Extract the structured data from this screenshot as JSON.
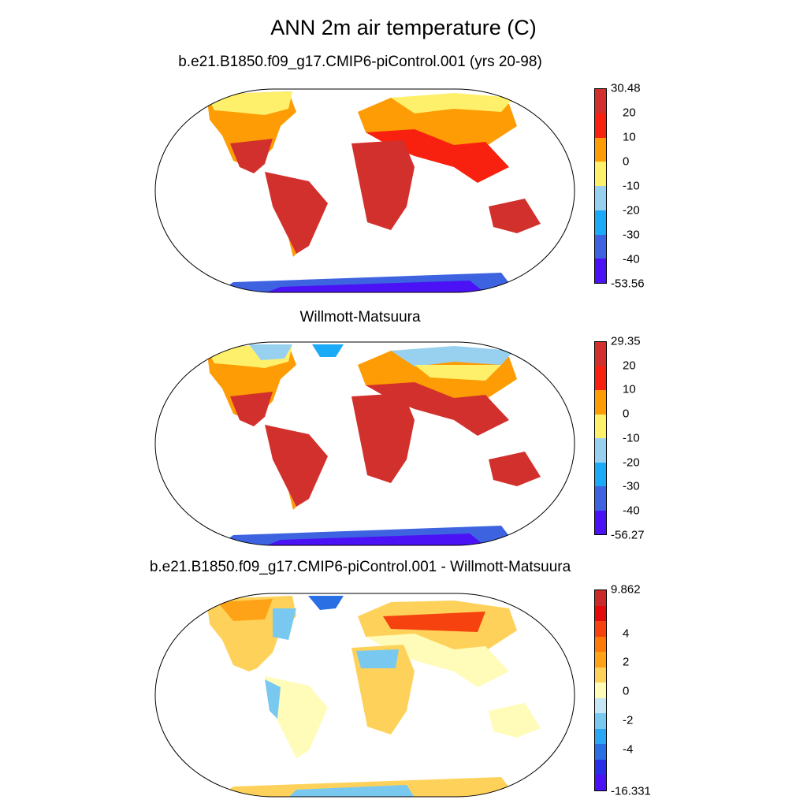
{
  "title": "ANN 2m air temperature (C)",
  "panels": [
    {
      "subtitle": "b.e21.B1850.f09_g17.CMIP6-piControl.001 (yrs 20-98)",
      "colorbar": {
        "max_label": "30.48",
        "min_label": "-53.56",
        "tick_labels": [
          "20",
          "10",
          "0",
          "-10",
          "-20",
          "-30",
          "-40"
        ],
        "colors": [
          "#d2302c",
          "#f8200f",
          "#fd9c04",
          "#fef06a",
          "#98d1f0",
          "#1aaaf8",
          "#3d63e1",
          "#4a12f5"
        ]
      }
    },
    {
      "subtitle": "Willmott-Matsuura",
      "colorbar": {
        "max_label": "29.35",
        "min_label": "-56.27",
        "tick_labels": [
          "20",
          "10",
          "0",
          "-10",
          "-20",
          "-30",
          "-40"
        ],
        "colors": [
          "#d2302c",
          "#f8200f",
          "#fd9c04",
          "#fef06a",
          "#98d1f0",
          "#1aaaf8",
          "#3d63e1",
          "#4a12f5"
        ]
      }
    },
    {
      "subtitle": "b.e21.B1850.f09_g17.CMIP6-piControl.001 - Willmott-Matsuura",
      "colorbar": {
        "max_label": "9.862",
        "min_label": "-16.331",
        "tick_labels": [
          "4",
          "2",
          "0",
          "-2",
          "-4"
        ],
        "colors": [
          "#c92a2a",
          "#e20a0a",
          "#f5420e",
          "#fd7a09",
          "#fea317",
          "#fed25a",
          "#fffbb8",
          "#c6e6f5",
          "#78c8f0",
          "#2aa6f4",
          "#2a70e4",
          "#2a2ee6",
          "#4a12f5"
        ]
      }
    }
  ],
  "map_colors": {
    "warm": "#d2302c",
    "hot": "#f8200f",
    "mild": "#fd9c04",
    "cool": "#fef06a",
    "cold": "#98d1f0",
    "frost": "#1aaaf8",
    "ice": "#3d63e1",
    "deep_ice": "#4a12f5",
    "diff_pos_hi": "#f5420e",
    "diff_pos": "#fea317",
    "diff_pos_lo": "#fed25a",
    "diff_zero": "#fffbb8",
    "diff_neg": "#78c8f0",
    "diff_neg_hi": "#2a70e4"
  }
}
